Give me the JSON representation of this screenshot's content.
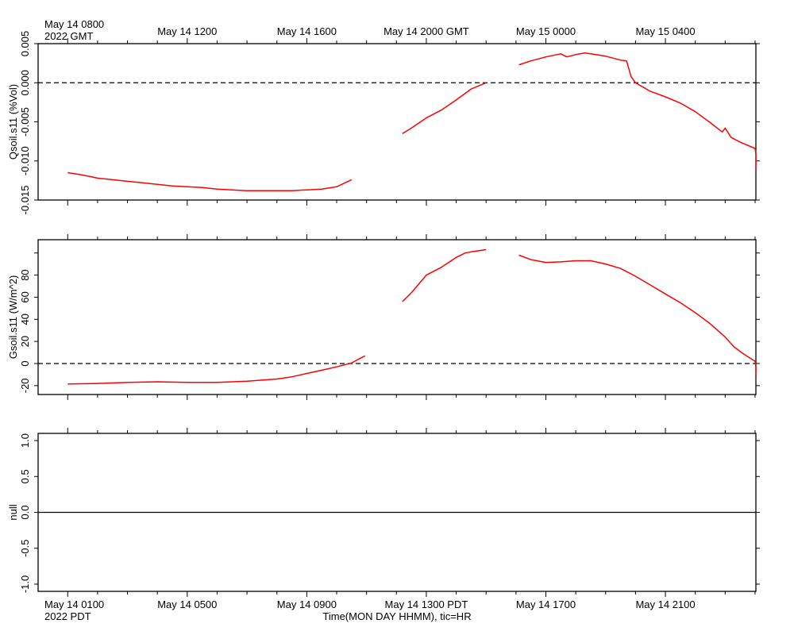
{
  "top_axis": {
    "first_label": [
      "May 14 0800",
      "2022 GMT"
    ],
    "labels": [
      "May 14 1200",
      "May 14 1600",
      "May 14 2000 GMT",
      "May 15 0000",
      "May 15 0400"
    ]
  },
  "bottom_axis": {
    "first_label": [
      "May 14 0100",
      "2022 PDT"
    ],
    "labels": [
      "May 14 0500",
      "May 14 0900",
      "May 14 1300 PDT",
      "May 14 1700",
      "May 14 2100"
    ],
    "title": "Time(MON DAY HHMM), tic=HR"
  },
  "colors": {
    "series": "#ff0000",
    "axes": "#000000",
    "zero_line": "#000000"
  },
  "chart_data": [
    {
      "type": "line",
      "ylabel": "Qsoil.s11 (%Vol)",
      "ylim": [
        -0.015,
        0.005
      ],
      "yticks": [
        "0.005",
        "0.000",
        "-0.005",
        "-0.010",
        "-0.015"
      ],
      "ytick_values": [
        0.005,
        0.0,
        -0.005,
        -0.01,
        -0.015
      ],
      "zero_line": true,
      "x_units": "hours since May 14 0000 PDT",
      "series": [
        {
          "segments": [
            [
              [
                0.0,
                -0.0115
              ],
              [
                0.5,
                -0.0118
              ],
              [
                1.0,
                -0.0122
              ],
              [
                1.5,
                -0.0124
              ],
              [
                2.0,
                -0.0126
              ],
              [
                2.5,
                -0.0128
              ],
              [
                3.0,
                -0.013
              ],
              [
                3.5,
                -0.0132
              ],
              [
                4.0,
                -0.0133
              ],
              [
                4.5,
                -0.0134
              ],
              [
                5.0,
                -0.0136
              ],
              [
                5.5,
                -0.0137
              ],
              [
                6.0,
                -0.0138
              ],
              [
                6.5,
                -0.0138
              ],
              [
                7.0,
                -0.0138
              ],
              [
                7.5,
                -0.0138
              ],
              [
                8.0,
                -0.0137
              ],
              [
                8.5,
                -0.0136
              ],
              [
                9.0,
                -0.0133
              ],
              [
                9.5,
                -0.0124
              ]
            ],
            [
              [
                11.2,
                -0.0065
              ],
              [
                11.5,
                -0.0058
              ],
              [
                12.0,
                -0.0045
              ],
              [
                12.5,
                -0.0035
              ],
              [
                13.0,
                -0.0022
              ],
              [
                13.5,
                -0.0008
              ],
              [
                14.0,
                0.0
              ]
            ],
            [
              [
                15.1,
                0.0023
              ],
              [
                15.5,
                0.0028
              ],
              [
                16.0,
                0.0033
              ],
              [
                16.5,
                0.0037
              ],
              [
                16.7,
                0.0033
              ],
              [
                17.0,
                0.0036
              ],
              [
                17.3,
                0.0038
              ],
              [
                17.5,
                0.0037
              ],
              [
                18.0,
                0.0034
              ],
              [
                18.5,
                0.0029
              ],
              [
                18.7,
                0.0028
              ],
              [
                18.85,
                0.0008
              ],
              [
                19.0,
                0.0
              ],
              [
                19.5,
                -0.0011
              ],
              [
                20.0,
                -0.0018
              ],
              [
                20.5,
                -0.0026
              ],
              [
                21.0,
                -0.0037
              ],
              [
                21.5,
                -0.0051
              ],
              [
                21.9,
                -0.0063
              ],
              [
                22.0,
                -0.0058
              ],
              [
                22.2,
                -0.007
              ],
              [
                22.5,
                -0.0076
              ],
              [
                23.0,
                -0.0084
              ],
              [
                23.5,
                -0.0091
              ],
              [
                23.8,
                -0.0094
              ],
              [
                24.0,
                -0.0094
              ],
              [
                24.5,
                -0.0098
              ],
              [
                25.0,
                -0.0102
              ],
              [
                25.5,
                -0.0105
              ],
              [
                25.8,
                -0.0108
              ],
              [
                26.0,
                -0.0106
              ],
              [
                26.2,
                -0.0111
              ]
            ]
          ]
        }
      ]
    },
    {
      "type": "line",
      "ylabel": "Gsoil.s11 (W/m^2)",
      "ylim": [
        -28,
        112
      ],
      "yticks": [
        "80",
        "60",
        "40",
        "20",
        "0",
        "-20"
      ],
      "ytick_values": [
        80,
        60,
        40,
        20,
        0,
        -20
      ],
      "ytick_marks": [
        100,
        80,
        60,
        40,
        20,
        0,
        -20
      ],
      "zero_line": true,
      "x_units": "hours since May 14 0000 PDT",
      "series": [
        {
          "segments": [
            [
              [
                0.0,
                -18.5
              ],
              [
                1.0,
                -18.0
              ],
              [
                2.0,
                -17.0
              ],
              [
                3.0,
                -16.5
              ],
              [
                4.0,
                -17.0
              ],
              [
                5.0,
                -17.0
              ],
              [
                6.0,
                -16.0
              ],
              [
                6.5,
                -15.0
              ],
              [
                7.0,
                -14.0
              ],
              [
                7.5,
                -12.0
              ],
              [
                8.0,
                -9.0
              ],
              [
                8.5,
                -6.0
              ],
              [
                9.0,
                -3.0
              ],
              [
                9.5,
                0.5
              ],
              [
                9.7,
                3.5
              ],
              [
                9.95,
                7.0
              ]
            ],
            [
              [
                11.2,
                56.0
              ],
              [
                11.5,
                64.0
              ],
              [
                12.0,
                80.0
              ],
              [
                12.5,
                87.0
              ],
              [
                13.0,
                96.0
              ],
              [
                13.3,
                100.0
              ],
              [
                13.5,
                101.0
              ],
              [
                14.0,
                103.0
              ]
            ],
            [
              [
                15.1,
                98.0
              ],
              [
                15.5,
                94.0
              ],
              [
                16.0,
                91.5
              ],
              [
                16.5,
                92.0
              ],
              [
                17.0,
                93.0
              ],
              [
                17.5,
                93.0
              ],
              [
                18.0,
                90.0
              ],
              [
                18.5,
                86.0
              ],
              [
                19.0,
                79.0
              ],
              [
                19.5,
                71.0
              ],
              [
                20.0,
                63.0
              ],
              [
                20.5,
                55.0
              ],
              [
                21.0,
                46.0
              ],
              [
                21.5,
                36.0
              ],
              [
                22.0,
                24.0
              ],
              [
                22.3,
                15.0
              ],
              [
                22.6,
                9.0
              ],
              [
                23.0,
                2.0
              ],
              [
                23.5,
                -3.0
              ],
              [
                24.0,
                -4.5
              ],
              [
                24.5,
                -6.0
              ],
              [
                25.0,
                -7.5
              ],
              [
                25.5,
                -9.0
              ],
              [
                26.0,
                -10.5
              ]
            ]
          ]
        }
      ]
    },
    {
      "type": "line",
      "ylabel": "null",
      "ylim": [
        -1.1,
        1.1
      ],
      "yticks": [
        "1.0",
        "0.5",
        "0.0",
        "-0.5",
        "-1.0"
      ],
      "ytick_values": [
        1.0,
        0.5,
        0.0,
        -0.5,
        -1.0
      ],
      "zero_line": false,
      "x_units": "hours since May 14 0000 PDT",
      "series": [
        {
          "segments": [
            [
              [
                -1.0,
                0.0
              ],
              [
                27.0,
                0.0
              ]
            ]
          ]
        }
      ]
    }
  ]
}
